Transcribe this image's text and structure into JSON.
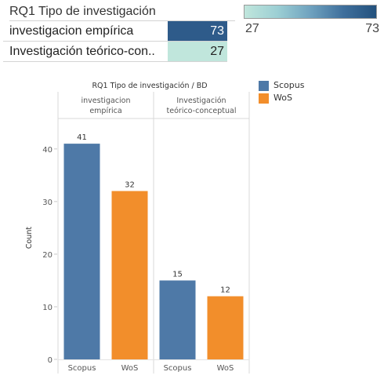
{
  "highlight_table": {
    "title": "RQ1 Tipo de investigación",
    "rows": [
      {
        "label": "investigacion empírica",
        "value": 73,
        "bg": "#2e5b8a",
        "fg": "#ffffff"
      },
      {
        "label": "Investigación teórico-con..",
        "value": 27,
        "bg": "#c0e6dc",
        "fg": "#222222"
      }
    ]
  },
  "color_legend": {
    "min_label": "27",
    "max_label": "73",
    "min_color": "#c0e6dc",
    "max_color": "#23517d"
  },
  "legend": {
    "items": [
      {
        "label": "Scopus",
        "color": "#4e79a7"
      },
      {
        "label": "WoS",
        "color": "#f28e2b"
      }
    ]
  },
  "chart_data": {
    "type": "bar",
    "title": "RQ1 Tipo de investigación  /  BD",
    "ylabel": "Count",
    "ylim": [
      0,
      44
    ],
    "yticks": [
      0,
      10,
      20,
      30,
      40
    ],
    "grid": false,
    "legend_position": "top-right",
    "panels": [
      {
        "header_lines": [
          "investigacion",
          "empírica"
        ],
        "bars": [
          {
            "category": "Scopus",
            "value": 41,
            "color": "#4e79a7"
          },
          {
            "category": "WoS",
            "value": 32,
            "color": "#f28e2b"
          }
        ]
      },
      {
        "header_lines": [
          "Investigación",
          "teórico-conceptual"
        ],
        "bars": [
          {
            "category": "Scopus",
            "value": 15,
            "color": "#4e79a7"
          },
          {
            "category": "WoS",
            "value": 12,
            "color": "#f28e2b"
          }
        ]
      }
    ]
  }
}
